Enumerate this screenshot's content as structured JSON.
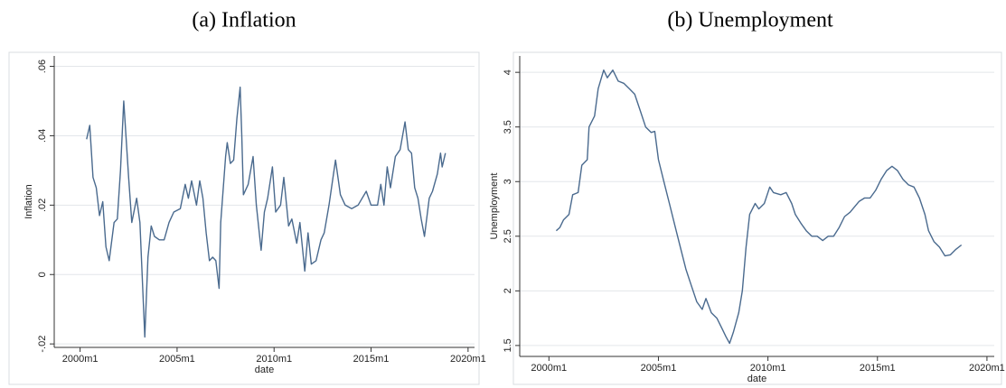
{
  "chart_data": [
    {
      "type": "line",
      "title": "(a) Inflation",
      "xlabel": "date",
      "ylabel": "Inflation",
      "color": "#4a6a8e",
      "grid": true,
      "xlim": [
        "1998m9",
        "2020m5"
      ],
      "xticks": [
        "2000m1",
        "2005m1",
        "2010m1",
        "2015m1",
        "2020m1"
      ],
      "ylim": [
        -0.021,
        0.063
      ],
      "yticks": [
        {
          "value": -0.02,
          "label": "-.02"
        },
        0,
        {
          "value": 0.02,
          "label": ".02"
        },
        {
          "value": 0.04,
          "label": ".04"
        },
        {
          "value": 0.06,
          "label": ".06"
        }
      ],
      "x": [
        "2000m5",
        "2000m7",
        "2000m9",
        "2000m11",
        "2001m1",
        "2001m3",
        "2001m5",
        "2001m7",
        "2001m10",
        "2001m12",
        "2002m2",
        "2002m4",
        "2002m7",
        "2002m9",
        "2002m12",
        "2003m2",
        "2003m5",
        "2003m7",
        "2003m9",
        "2003m11",
        "2004m2",
        "2004m5",
        "2004m8",
        "2004m11",
        "2005m3",
        "2005m6",
        "2005m8",
        "2005m10",
        "2006m1",
        "2006m3",
        "2006m5",
        "2006m7",
        "2006m9",
        "2006m11",
        "2007m1",
        "2007m3",
        "2007m4",
        "2007m7",
        "2007m8",
        "2007m10",
        "2007m12",
        "2008m2",
        "2008m4",
        "2008m5",
        "2008m6",
        "2008m9",
        "2008m12",
        "2009m2",
        "2009m5",
        "2009m7",
        "2009m9",
        "2009m12",
        "2010m2",
        "2010m5",
        "2010m7",
        "2010m10",
        "2010m12",
        "2011m3",
        "2011m5",
        "2011m8",
        "2011m10",
        "2011m12",
        "2012m3",
        "2012m6",
        "2012m8",
        "2012m11",
        "2013m3",
        "2013m6",
        "2013m9",
        "2014m1",
        "2014m5",
        "2014m10",
        "2015m1",
        "2015m5",
        "2015m7",
        "2015m9",
        "2015m11",
        "2016m1",
        "2016m4",
        "2016m7",
        "2016m10",
        "2016m12",
        "2017m2",
        "2017m4",
        "2017m6",
        "2017m8",
        "2017m10",
        "2018m1",
        "2018m3",
        "2018m6",
        "2018m8",
        "2018m9",
        "2018m11"
      ],
      "values": [
        0.039,
        0.043,
        0.028,
        0.025,
        0.017,
        0.021,
        0.008,
        0.004,
        0.015,
        0.016,
        0.03,
        0.05,
        0.028,
        0.015,
        0.022,
        0.015,
        -0.018,
        0.005,
        0.014,
        0.011,
        0.01,
        0.01,
        0.015,
        0.018,
        0.019,
        0.026,
        0.022,
        0.027,
        0.02,
        0.027,
        0.022,
        0.012,
        0.004,
        0.005,
        0.004,
        -0.004,
        0.015,
        0.034,
        0.038,
        0.032,
        0.033,
        0.045,
        0.054,
        0.04,
        0.023,
        0.026,
        0.034,
        0.02,
        0.007,
        0.018,
        0.022,
        0.031,
        0.018,
        0.02,
        0.028,
        0.014,
        0.016,
        0.009,
        0.015,
        0.001,
        0.012,
        0.003,
        0.004,
        0.01,
        0.012,
        0.02,
        0.033,
        0.023,
        0.02,
        0.019,
        0.02,
        0.024,
        0.02,
        0.02,
        0.026,
        0.02,
        0.031,
        0.025,
        0.034,
        0.036,
        0.044,
        0.036,
        0.035,
        0.025,
        0.022,
        0.016,
        0.011,
        0.022,
        0.024,
        0.029,
        0.035,
        0.031,
        0.035
      ]
    },
    {
      "type": "line",
      "title": "(b) Unemployment",
      "xlabel": "date",
      "ylabel": "Unemployment",
      "color": "#4a6a8e",
      "grid": true,
      "xlim": [
        "1998m9",
        "2020m5"
      ],
      "xticks": [
        "2000m1",
        "2005m1",
        "2010m1",
        "2015m1",
        "2020m1"
      ],
      "ylim": [
        1.4,
        4.15
      ],
      "yticks": [
        1.5,
        2,
        2.5,
        3,
        3.5,
        4
      ],
      "x": [
        "2000m5",
        "2000m7",
        "2000m9",
        "2000m12",
        "2001m2",
        "2001m5",
        "2001m7",
        "2001m10",
        "2001m11",
        "2002m2",
        "2002m4",
        "2002m7",
        "2002m9",
        "2002m12",
        "2003m3",
        "2003m6",
        "2003m9",
        "2003m12",
        "2004m3",
        "2004m6",
        "2004m9",
        "2004m11",
        "2005m1",
        "2005m4",
        "2005m7",
        "2005m10",
        "2006m1",
        "2006m4",
        "2006m7",
        "2006m10",
        "2007m1",
        "2007m3",
        "2007m6",
        "2007m9",
        "2007m12",
        "2008m2",
        "2008m4",
        "2008m6",
        "2008m9",
        "2008m11",
        "2009m1",
        "2009m3",
        "2009m6",
        "2009m8",
        "2009m11",
        "2010m2",
        "2010m4",
        "2010m8",
        "2010m11",
        "2011m2",
        "2011m4",
        "2011m7",
        "2011m10",
        "2012m1",
        "2012m4",
        "2012m7",
        "2012m10",
        "2013m1",
        "2013m4",
        "2013m7",
        "2013m10",
        "2014m1",
        "2014m3",
        "2014m6",
        "2014m9",
        "2014m12",
        "2015m3",
        "2015m6",
        "2015m9",
        "2015m12",
        "2016m3",
        "2016m6",
        "2016m9",
        "2016m12",
        "2017m3",
        "2017m5",
        "2017m8",
        "2017m11",
        "2018m2",
        "2018m5",
        "2018m8",
        "2018m11"
      ],
      "values": [
        2.55,
        2.58,
        2.65,
        2.7,
        2.88,
        2.9,
        3.15,
        3.2,
        3.5,
        3.6,
        3.85,
        4.02,
        3.95,
        4.02,
        3.92,
        3.9,
        3.85,
        3.8,
        3.65,
        3.5,
        3.45,
        3.46,
        3.2,
        3.0,
        2.8,
        2.6,
        2.4,
        2.2,
        2.05,
        1.9,
        1.83,
        1.93,
        1.8,
        1.75,
        1.65,
        1.58,
        1.52,
        1.62,
        1.8,
        2.0,
        2.4,
        2.7,
        2.8,
        2.75,
        2.8,
        2.95,
        2.9,
        2.88,
        2.9,
        2.8,
        2.7,
        2.62,
        2.55,
        2.5,
        2.5,
        2.46,
        2.5,
        2.5,
        2.58,
        2.68,
        2.72,
        2.78,
        2.82,
        2.85,
        2.85,
        2.92,
        3.02,
        3.1,
        3.14,
        3.1,
        3.02,
        2.97,
        2.95,
        2.85,
        2.7,
        2.55,
        2.45,
        2.4,
        2.32,
        2.33,
        2.38,
        2.42
      ]
    }
  ]
}
